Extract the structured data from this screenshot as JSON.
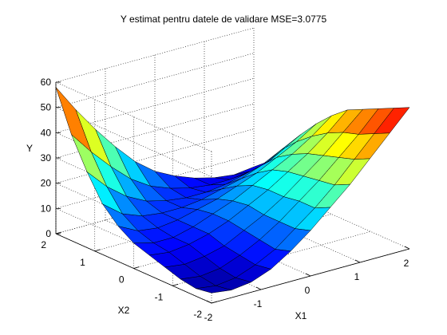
{
  "chart_data": {
    "type": "surface",
    "title": "Y estimat pentru datele de validare MSE=3.0775",
    "xlabel": "X1",
    "ylabel": "X2",
    "zlabel": "Y",
    "xlim": [
      -2,
      2
    ],
    "ylim": [
      -2,
      2
    ],
    "zlim": [
      0,
      60
    ],
    "x_ticks": [
      "-2",
      "-1",
      "0",
      "1",
      "2"
    ],
    "y_ticks": [
      "-2",
      "-1",
      "0",
      "1",
      "2"
    ],
    "z_ticks": [
      "0",
      "10",
      "20",
      "30",
      "40",
      "50",
      "60"
    ],
    "colormap": "jet",
    "grid": true,
    "x": [
      -2,
      -1.6,
      -1.2,
      -0.8,
      -0.4,
      0,
      0.4,
      0.8,
      1.2,
      1.6,
      2
    ],
    "y": [
      -2,
      -1.6,
      -1.2,
      -0.8,
      -0.4,
      0,
      0.4,
      0.8,
      1.2,
      1.6,
      2
    ],
    "z": [
      [
        4,
        3,
        4,
        7,
        12,
        18,
        25,
        32,
        40,
        48,
        56
      ],
      [
        3,
        2,
        3,
        6,
        10,
        16,
        22,
        29,
        37,
        45,
        53
      ],
      [
        4,
        3,
        4,
        7,
        11,
        16,
        22,
        28,
        35,
        42,
        50
      ],
      [
        6,
        5,
        6,
        8,
        12,
        16,
        21,
        27,
        33,
        40,
        47
      ],
      [
        8,
        7,
        8,
        10,
        13,
        17,
        21,
        26,
        31,
        37,
        44
      ],
      [
        10,
        8,
        8,
        10,
        13,
        16,
        20,
        24,
        28,
        33,
        39
      ],
      [
        14,
        10,
        9,
        10,
        12,
        14,
        17,
        20,
        24,
        28,
        33
      ],
      [
        20,
        14,
        11,
        10,
        10,
        11,
        13,
        15,
        18,
        22,
        26
      ],
      [
        30,
        22,
        16,
        12,
        10,
        9,
        9,
        10,
        12,
        14,
        18
      ],
      [
        42,
        33,
        25,
        18,
        13,
        10,
        8,
        7,
        7,
        8,
        10
      ],
      [
        58,
        47,
        37,
        28,
        20,
        14,
        10,
        7,
        5,
        4,
        5
      ]
    ]
  }
}
